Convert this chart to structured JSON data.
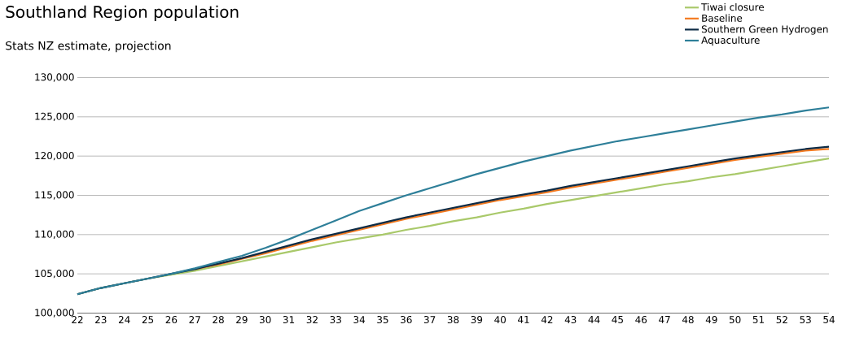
{
  "chart_data": {
    "type": "line",
    "title": "Southland Region population",
    "subtitle": "Stats NZ estimate, projection",
    "categories": [
      "22",
      "23",
      "24",
      "25",
      "26",
      "27",
      "28",
      "29",
      "30",
      "31",
      "32",
      "33",
      "34",
      "35",
      "36",
      "37",
      "38",
      "39",
      "40",
      "41",
      "42",
      "43",
      "44",
      "45",
      "46",
      "47",
      "48",
      "49",
      "50",
      "51",
      "52",
      "53",
      "54"
    ],
    "series": [
      {
        "name": "Tiwai closure",
        "color": "#a9c96a",
        "values": [
          102400,
          103200,
          103800,
          104400,
          104900,
          105400,
          106000,
          106600,
          107200,
          107800,
          108400,
          109000,
          109500,
          110000,
          110600,
          111100,
          111700,
          112200,
          112800,
          113300,
          113900,
          114400,
          114900,
          115400,
          115900,
          116400,
          116800,
          117300,
          117700,
          118200,
          118700,
          119200,
          119700
        ]
      },
      {
        "name": "Baseline",
        "color": "#f47a20",
        "values": [
          null,
          null,
          null,
          null,
          null,
          105600,
          106200,
          106900,
          107600,
          108400,
          109200,
          109900,
          110600,
          111300,
          112000,
          112600,
          113200,
          113800,
          114400,
          114900,
          115400,
          116000,
          116500,
          117000,
          117500,
          118000,
          118500,
          119000,
          119500,
          119900,
          120300,
          120700,
          120900
        ]
      },
      {
        "name": "Southern Green Hydrogen",
        "color": "#0d2b45",
        "values": [
          102400,
          103200,
          103800,
          104400,
          105000,
          105600,
          106300,
          107000,
          107800,
          108600,
          109400,
          110100,
          110800,
          111500,
          112200,
          112800,
          113400,
          114000,
          114600,
          115100,
          115600,
          116200,
          116700,
          117200,
          117700,
          118200,
          118700,
          119200,
          119700,
          120100,
          120500,
          120900,
          121200
        ]
      },
      {
        "name": "Aquaculture",
        "color": "#2e7f99",
        "values": [
          102400,
          103200,
          103800,
          104400,
          105000,
          105700,
          106500,
          107300,
          108300,
          109400,
          110600,
          111800,
          113000,
          114000,
          115000,
          115900,
          116800,
          117700,
          118500,
          119300,
          120000,
          120700,
          121300,
          121900,
          122400,
          122900,
          123400,
          123900,
          124400,
          124900,
          125300,
          125800,
          126200
        ]
      }
    ],
    "ylim": [
      100000,
      130000
    ],
    "yticks": [
      {
        "value": 100000,
        "label": "100,000"
      },
      {
        "value": 105000,
        "label": "105,000"
      },
      {
        "value": 110000,
        "label": "110,000"
      },
      {
        "value": 115000,
        "label": "115,000"
      },
      {
        "value": 120000,
        "label": "120,000"
      },
      {
        "value": 125000,
        "label": "125,000"
      },
      {
        "value": 130000,
        "label": "130,000"
      }
    ],
    "grid": "y",
    "legend": "top right",
    "marker": "none",
    "line_style": "solid"
  }
}
